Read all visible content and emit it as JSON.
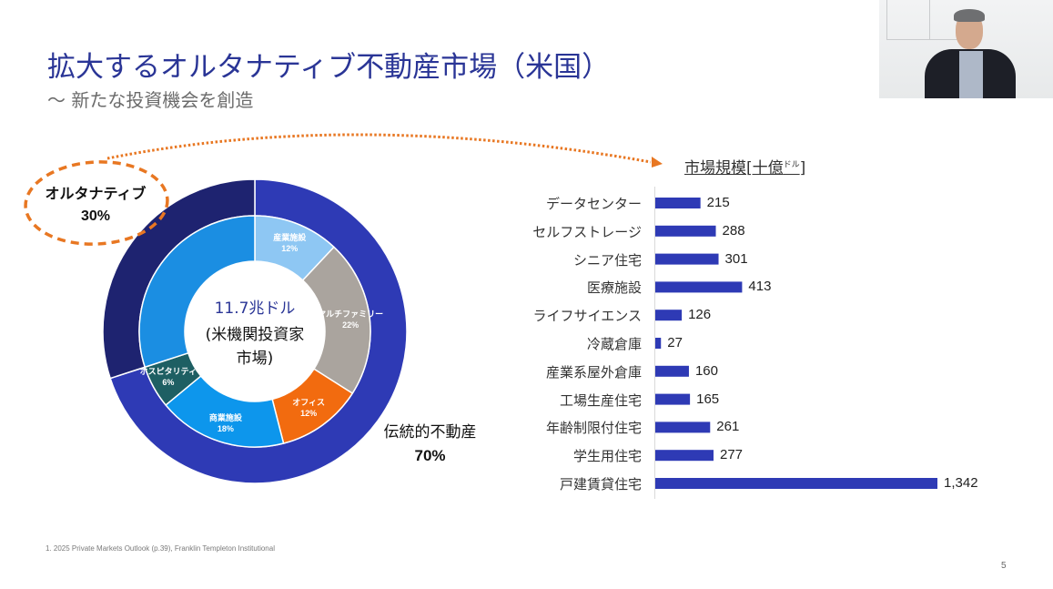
{
  "slide": {
    "title": "拡大するオルタナティブ不動産市場（米国）",
    "subtitle": "～  新たな投資機会を創造",
    "footnote": "1. 2025 Private Markets Outlook (p.39), Franklin Templeton Institutional",
    "page_number": "5"
  },
  "webcam": {
    "description": "presenter-video-thumbnail"
  },
  "colors": {
    "title": "#2a3596",
    "alt_outer": "#1e2370",
    "trad_outer": "#2e3ab5",
    "bar": "#2e3ab5",
    "arrow": "#e87722"
  },
  "chart_data": [
    {
      "type": "pie",
      "subtype": "nested-donut",
      "title": "11.7兆ドル (米機関投資家市場)",
      "center_amount": "11.7兆ドル",
      "center_desc_line1": "(米機関投資家",
      "center_desc_line2": "市場)",
      "outer_ring": [
        {
          "name": "伝統的不動産",
          "value": 70,
          "label": "70%",
          "color": "#2e3ab5"
        },
        {
          "name": "オルタナティブ",
          "value": 30,
          "label": "30%",
          "color": "#1e2370"
        }
      ],
      "inner_ring": [
        {
          "name": "産業施設",
          "value": 12,
          "label": "12%",
          "color": "#8ec7f3"
        },
        {
          "name": "マルチファミリー",
          "value": 22,
          "label": "22%",
          "color": "#aaa49e"
        },
        {
          "name": "オフィス",
          "value": 12,
          "label": "12%",
          "color": "#f26b0f"
        },
        {
          "name": "商業施設",
          "value": 18,
          "label": "18%",
          "color": "#0d96ec"
        },
        {
          "name": "ホスピタリティ",
          "value": 6,
          "label": "6%",
          "color": "#1e5f63"
        },
        {
          "name": "オルタナティブ",
          "value": 30,
          "label": "",
          "color": "#1b8ee2"
        }
      ]
    },
    {
      "type": "bar",
      "orientation": "horizontal",
      "title": "市場規模[十億ドル]",
      "title_main": "市場規模[十億",
      "title_unit": "ドル",
      "title_close": "]",
      "categories": [
        "データセンター",
        "セルフストレージ",
        "シニア住宅",
        "医療施設",
        "ライフサイエンス",
        "冷蔵倉庫",
        "産業系屋外倉庫",
        "工場生産住宅",
        "年齢制限付住宅",
        "学生用住宅",
        "戸建賃貸住宅"
      ],
      "values": [
        215,
        288,
        301,
        413,
        126,
        27,
        160,
        165,
        261,
        277,
        1342
      ],
      "value_labels": [
        "215",
        "288",
        "301",
        "413",
        "126",
        "27",
        "160",
        "165",
        "261",
        "277",
        "1,342"
      ],
      "xlim": [
        0,
        1342
      ],
      "grid": false
    }
  ]
}
